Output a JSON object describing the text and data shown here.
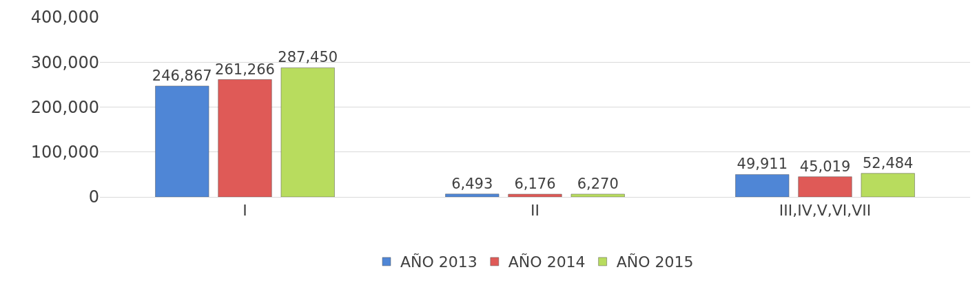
{
  "chart_data": {
    "type": "bar",
    "categories": [
      "I",
      "II",
      "III,IV,V,VI,VII"
    ],
    "series": [
      {
        "name": "AÑO 2013",
        "color": "#4f86d6",
        "values": [
          246867,
          6493,
          49911
        ],
        "value_labels": [
          "246,867",
          "6,493",
          "49,911"
        ]
      },
      {
        "name": "AÑO 2014",
        "color": "#df5a57",
        "values": [
          261266,
          6176,
          45019
        ],
        "value_labels": [
          "261,266",
          "6,176",
          "45,019"
        ]
      },
      {
        "name": "AÑO 2015",
        "color": "#b8dc5e",
        "values": [
          287450,
          6270,
          52484
        ],
        "value_labels": [
          "287,450",
          "6,270",
          "52,484"
        ]
      }
    ],
    "ylim": [
      0,
      400000
    ],
    "yticks": [
      {
        "value": 0,
        "label": "0"
      },
      {
        "value": 100000,
        "label": "100,000"
      },
      {
        "value": 200000,
        "label": "200,000"
      },
      {
        "value": 300000,
        "label": "300,000"
      },
      {
        "value": 400000,
        "label": "400,000"
      }
    ],
    "grid": "y",
    "legend": "bottom"
  }
}
